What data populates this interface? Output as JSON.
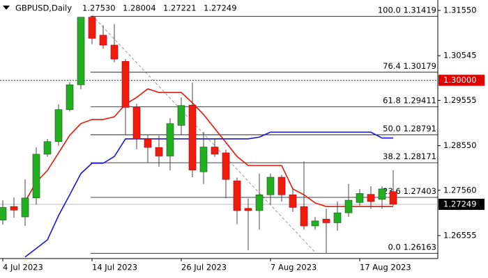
{
  "chart_data": {
    "type": "candlestick",
    "title": "GBPUSD,Daily",
    "ohlc_text": [
      "1.27530",
      "1.28004",
      "1.27221",
      "1.27249"
    ],
    "categories": [
      "4 Jul 2023",
      null,
      null,
      null,
      null,
      null,
      null,
      null,
      "14 Jul 2023",
      null,
      null,
      null,
      null,
      null,
      null,
      null,
      "26 Jul 2023",
      null,
      null,
      null,
      null,
      null,
      null,
      null,
      "7 Aug 2023",
      null,
      null,
      null,
      null,
      null,
      null,
      null,
      "17 Aug 2023",
      null,
      null,
      null
    ],
    "open": [
      1.269,
      1.272,
      1.2697,
      1.2739,
      1.2836,
      1.2864,
      1.2935,
      1.299,
      1.314,
      1.31,
      1.3078,
      1.3042,
      1.294,
      1.287,
      1.2851,
      1.2832,
      1.29,
      1.2945,
      1.2797,
      1.2852,
      1.2839,
      1.2777,
      1.2716,
      1.2711,
      1.2746,
      1.2785,
      1.2746,
      1.272,
      1.2677,
      1.2692,
      1.2684,
      1.2706,
      1.2729,
      1.2747,
      1.2736,
      1.2753
    ],
    "high": [
      1.2734,
      1.274,
      1.278,
      1.2851,
      1.287,
      1.2947,
      1.2996,
      1.3138,
      1.31419,
      1.3122,
      1.3125,
      1.3047,
      1.2948,
      1.288,
      1.2877,
      1.2916,
      1.2962,
      1.2995,
      1.2885,
      1.287,
      1.2846,
      1.2784,
      1.2738,
      1.2793,
      1.2793,
      1.279,
      1.2762,
      1.282,
      1.2697,
      1.2715,
      1.2731,
      1.277,
      1.2759,
      1.2765,
      1.2765,
      1.28004
    ],
    "low": [
      1.268,
      1.2695,
      1.2677,
      1.2724,
      1.283,
      1.2855,
      1.2931,
      1.298,
      1.308,
      1.307,
      1.304,
      1.2878,
      1.2847,
      1.2818,
      1.2808,
      1.28,
      1.2878,
      1.2785,
      1.277,
      1.283,
      1.2738,
      1.2681,
      1.2623,
      1.2669,
      1.2724,
      1.2731,
      1.2708,
      1.2669,
      1.2669,
      1.26163,
      1.2666,
      1.2697,
      1.2722,
      1.2715,
      1.2715,
      1.27221
    ],
    "close": [
      1.2718,
      1.2712,
      1.2739,
      1.2836,
      1.2864,
      1.2935,
      1.299,
      1.314,
      1.3093,
      1.3078,
      1.3047,
      1.294,
      1.287,
      1.2851,
      1.2832,
      1.2904,
      1.2944,
      1.2801,
      1.2852,
      1.2836,
      1.278,
      1.2711,
      1.2711,
      1.2746,
      1.2785,
      1.2746,
      1.2718,
      1.2677,
      1.2688,
      1.2684,
      1.2706,
      1.2734,
      1.2749,
      1.2731,
      1.2759,
      1.27249
    ],
    "up_color": "#22b022",
    "down_color": "#f01a10",
    "lines": [
      {
        "color": "#e8160c",
        "values": [
          null,
          null,
          1.2731,
          1.2774,
          1.28,
          1.2839,
          1.2878,
          1.2904,
          1.2913,
          1.2913,
          1.2919,
          1.2947,
          1.2962,
          1.2981,
          1.2973,
          1.2973,
          1.2973,
          1.295,
          1.2924,
          1.2893,
          1.2862,
          1.2831,
          1.2811,
          1.2811,
          1.2811,
          1.2811,
          1.2759,
          1.2746,
          1.2728,
          1.272,
          1.272,
          1.272,
          1.272,
          1.272,
          1.272,
          1.272
        ]
      },
      {
        "color": "#1414e0",
        "values": [
          null,
          null,
          1.2608,
          1.2627,
          1.2646,
          1.27,
          1.2746,
          1.2793,
          1.2816,
          1.2816,
          1.2831,
          1.287,
          1.287,
          1.287,
          1.287,
          1.287,
          1.287,
          1.287,
          1.287,
          1.287,
          1.287,
          1.287,
          1.287,
          1.2874,
          1.2885,
          1.2885,
          1.2885,
          1.2885,
          1.2885,
          1.2885,
          1.2885,
          1.2885,
          1.2885,
          1.2885,
          1.2872,
          1.2872
        ]
      }
    ],
    "fib_levels": [
      {
        "level": "100.0",
        "price": 1.31419
      },
      {
        "level": "76.4",
        "price": 1.30179
      },
      {
        "level": "61.8",
        "price": 1.29411
      },
      {
        "level": "50.0",
        "price": 1.28791
      },
      {
        "level": "38.2",
        "price": 1.28171
      },
      {
        "level": "23.6",
        "price": 1.27403
      },
      {
        "level": "0.0",
        "price": 1.26163
      }
    ],
    "reference_line": {
      "value": 1.3,
      "label": "1.30000",
      "color": "#e00000"
    },
    "current_price": 1.27249,
    "ylim": [
      1.26046,
      1.31781
    ],
    "yticks": [
      {
        "value": 1.3155,
        "label": "1.31550"
      },
      1.30545,
      1.29555,
      {
        "value": 1.2855,
        "label": "1.28550"
      },
      {
        "value": 1.2756,
        "label": "1.27560"
      },
      1.26555
    ]
  }
}
